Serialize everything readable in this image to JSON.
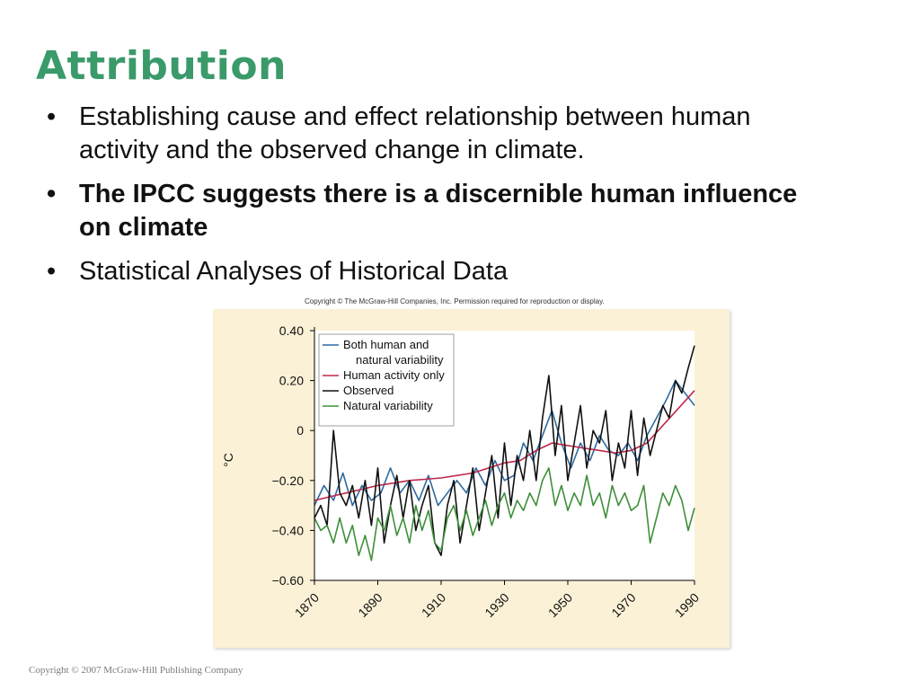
{
  "slide": {
    "title": "Attribution",
    "bullets": [
      {
        "text": "Establishing cause and effect relationship between human activity and the observed change in climate.",
        "bold": false
      },
      {
        "text": "The IPCC suggests there is a discernible human influence on climate",
        "bold": true
      },
      {
        "text": "Statistical Analyses of Historical Data",
        "bold": false
      }
    ],
    "bullet_char": "•",
    "footer": "Copyright © 2007 McGraw-Hill Publishing Company"
  },
  "chart_data": {
    "type": "line",
    "copyright": "Copyright © The McGraw-Hill Companies, Inc. Permission required for reproduction or display.",
    "title": "",
    "xlabel": "",
    "ylabel": "°C",
    "xlim": [
      1870,
      1990
    ],
    "ylim": [
      -0.6,
      0.4
    ],
    "x_ticks": [
      1870,
      1890,
      1910,
      1930,
      1950,
      1970,
      1990
    ],
    "y_ticks": [
      0.4,
      0.2,
      0,
      -0.2,
      -0.4,
      -0.6
    ],
    "y_tick_labels": [
      "0.40",
      "0.20",
      "0",
      "−0.20",
      "−0.40",
      "−0.60"
    ],
    "legend_position": "top-left",
    "background": "#fbf1d6",
    "series": [
      {
        "name": "Both human and natural variability",
        "color": "#2e6aa0",
        "x": [
          1870,
          1873,
          1876,
          1879,
          1882,
          1885,
          1888,
          1891,
          1894,
          1897,
          1900,
          1903,
          1906,
          1909,
          1912,
          1915,
          1918,
          1921,
          1924,
          1927,
          1930,
          1933,
          1936,
          1939,
          1942,
          1945,
          1948,
          1951,
          1954,
          1957,
          1960,
          1963,
          1966,
          1969,
          1972,
          1975,
          1978,
          1981,
          1984,
          1987,
          1990
        ],
        "y": [
          -0.3,
          -0.22,
          -0.28,
          -0.17,
          -0.3,
          -0.22,
          -0.28,
          -0.25,
          -0.15,
          -0.25,
          -0.2,
          -0.28,
          -0.18,
          -0.3,
          -0.25,
          -0.2,
          -0.25,
          -0.15,
          -0.22,
          -0.12,
          -0.2,
          -0.18,
          -0.05,
          -0.12,
          -0.02,
          0.08,
          -0.05,
          -0.15,
          -0.05,
          -0.12,
          -0.02,
          -0.08,
          -0.1,
          -0.05,
          -0.12,
          -0.02,
          0.05,
          0.12,
          0.2,
          0.15,
          0.1
        ]
      },
      {
        "name": "Human activity only",
        "color": "#c0284a",
        "x": [
          1870,
          1880,
          1890,
          1900,
          1910,
          1920,
          1930,
          1935,
          1940,
          1945,
          1950,
          1955,
          1960,
          1965,
          1970,
          1975,
          1980,
          1985,
          1990
        ],
        "y": [
          -0.28,
          -0.25,
          -0.22,
          -0.2,
          -0.19,
          -0.17,
          -0.13,
          -0.12,
          -0.08,
          -0.05,
          -0.06,
          -0.07,
          -0.08,
          -0.09,
          -0.08,
          -0.05,
          0.02,
          0.09,
          0.16
        ]
      },
      {
        "name": "Observed",
        "color": "#111111",
        "x": [
          1870,
          1872,
          1874,
          1876,
          1878,
          1880,
          1882,
          1884,
          1886,
          1888,
          1890,
          1892,
          1894,
          1896,
          1898,
          1900,
          1902,
          1904,
          1906,
          1908,
          1910,
          1912,
          1914,
          1916,
          1918,
          1920,
          1922,
          1924,
          1926,
          1928,
          1930,
          1932,
          1934,
          1936,
          1938,
          1940,
          1942,
          1944,
          1946,
          1948,
          1950,
          1952,
          1954,
          1956,
          1958,
          1960,
          1962,
          1964,
          1966,
          1968,
          1970,
          1972,
          1974,
          1976,
          1978,
          1980,
          1982,
          1984,
          1986,
          1988,
          1990
        ],
        "y": [
          -0.35,
          -0.3,
          -0.38,
          0.0,
          -0.25,
          -0.3,
          -0.22,
          -0.35,
          -0.2,
          -0.38,
          -0.15,
          -0.45,
          -0.3,
          -0.18,
          -0.35,
          -0.2,
          -0.4,
          -0.3,
          -0.22,
          -0.45,
          -0.5,
          -0.3,
          -0.2,
          -0.45,
          -0.3,
          -0.15,
          -0.4,
          -0.25,
          -0.1,
          -0.35,
          -0.05,
          -0.3,
          -0.1,
          -0.2,
          0.0,
          -0.2,
          0.05,
          0.22,
          -0.1,
          0.1,
          -0.2,
          -0.05,
          0.1,
          -0.15,
          0.0,
          -0.05,
          0.08,
          -0.2,
          -0.05,
          -0.15,
          0.08,
          -0.18,
          0.05,
          -0.1,
          0.0,
          0.1,
          0.05,
          0.2,
          0.15,
          0.25,
          0.34
        ]
      },
      {
        "name": "Natural variability",
        "color": "#3f8f3a",
        "x": [
          1870,
          1872,
          1874,
          1876,
          1878,
          1880,
          1882,
          1884,
          1886,
          1888,
          1890,
          1892,
          1894,
          1896,
          1898,
          1900,
          1902,
          1904,
          1906,
          1908,
          1910,
          1912,
          1914,
          1916,
          1918,
          1920,
          1922,
          1924,
          1926,
          1928,
          1930,
          1932,
          1934,
          1936,
          1938,
          1940,
          1942,
          1944,
          1946,
          1948,
          1950,
          1952,
          1954,
          1956,
          1958,
          1960,
          1962,
          1964,
          1966,
          1968,
          1970,
          1972,
          1974,
          1976,
          1978,
          1980,
          1982,
          1984,
          1986,
          1988,
          1990
        ],
        "y": [
          -0.35,
          -0.4,
          -0.38,
          -0.45,
          -0.35,
          -0.45,
          -0.38,
          -0.5,
          -0.42,
          -0.52,
          -0.35,
          -0.4,
          -0.3,
          -0.42,
          -0.35,
          -0.45,
          -0.3,
          -0.4,
          -0.32,
          -0.45,
          -0.48,
          -0.35,
          -0.3,
          -0.4,
          -0.32,
          -0.42,
          -0.35,
          -0.28,
          -0.38,
          -0.3,
          -0.25,
          -0.35,
          -0.28,
          -0.32,
          -0.25,
          -0.3,
          -0.2,
          -0.15,
          -0.3,
          -0.22,
          -0.32,
          -0.25,
          -0.3,
          -0.18,
          -0.3,
          -0.25,
          -0.35,
          -0.22,
          -0.3,
          -0.25,
          -0.32,
          -0.3,
          -0.22,
          -0.45,
          -0.35,
          -0.25,
          -0.3,
          -0.22,
          -0.28,
          -0.4,
          -0.31
        ]
      }
    ]
  }
}
